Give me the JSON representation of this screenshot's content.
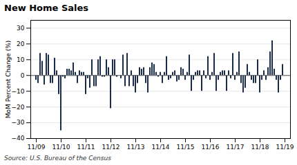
{
  "chart_data": {
    "type": "bar",
    "title": "New Home Sales",
    "ylabel": "MoM Percent Change (%)",
    "source": "Source:  U.S. Bureau of the Census",
    "categories": [
      "11/09",
      null,
      null,
      null,
      null,
      null,
      null,
      null,
      null,
      null,
      null,
      null,
      "11/10",
      null,
      null,
      null,
      null,
      null,
      null,
      null,
      null,
      null,
      null,
      null,
      "11/11",
      null,
      null,
      null,
      null,
      null,
      null,
      null,
      null,
      null,
      null,
      null,
      "11/12",
      null,
      null,
      null,
      null,
      null,
      null,
      null,
      null,
      null,
      null,
      null,
      "11/13",
      null,
      null,
      null,
      null,
      null,
      null,
      null,
      null,
      null,
      null,
      null,
      "11/14",
      null,
      null,
      null,
      null,
      null,
      null,
      null,
      null,
      null,
      null,
      null,
      "11/15",
      null,
      null,
      null,
      null,
      null,
      null,
      null,
      null,
      null,
      null,
      null,
      "11/16",
      null,
      null,
      null,
      null,
      null,
      null,
      null,
      null,
      null,
      null,
      null,
      "11/17",
      null,
      null,
      null,
      null,
      null,
      null,
      null,
      null,
      null,
      null,
      null,
      "11/18",
      null,
      null,
      null,
      null,
      null,
      null,
      null,
      null,
      null,
      null,
      null,
      "11/19"
    ],
    "values": [
      -3,
      -5,
      14,
      9,
      -6,
      14,
      13,
      -5,
      -5,
      11,
      3,
      -12,
      -35,
      -1,
      -2,
      4,
      4,
      3,
      8,
      2,
      -5,
      3,
      2,
      2,
      -12,
      -2,
      -8,
      10,
      -7,
      -7,
      10,
      12,
      -1,
      -1,
      10,
      5,
      -21,
      10,
      10,
      -1,
      0,
      -2,
      13,
      -7,
      14,
      -7,
      3,
      -7,
      -11,
      -5,
      5,
      4,
      5,
      -5,
      -11,
      5,
      8,
      7,
      2,
      -1,
      2,
      -5,
      2,
      12,
      -3,
      -2,
      2,
      3,
      -4,
      -3,
      5,
      4,
      -3,
      2,
      13,
      -10,
      -3,
      2,
      3,
      3,
      -10,
      3,
      -2,
      12,
      -3,
      2,
      14,
      -10,
      -3,
      2,
      3,
      3,
      -10,
      3,
      -2,
      14,
      -3,
      2,
      15,
      -5,
      -11,
      -8,
      7,
      2,
      -3,
      -5,
      -5,
      10,
      -11,
      -3,
      3,
      -3,
      5,
      15,
      22,
      4,
      -3,
      -11,
      -3,
      7,
      null
    ],
    "color": "#1a2a4a",
    "ylim": [
      -40,
      35
    ],
    "yticks": [
      -40,
      -30,
      -20,
      -10,
      0,
      10,
      20,
      30
    ],
    "grid": true
  }
}
